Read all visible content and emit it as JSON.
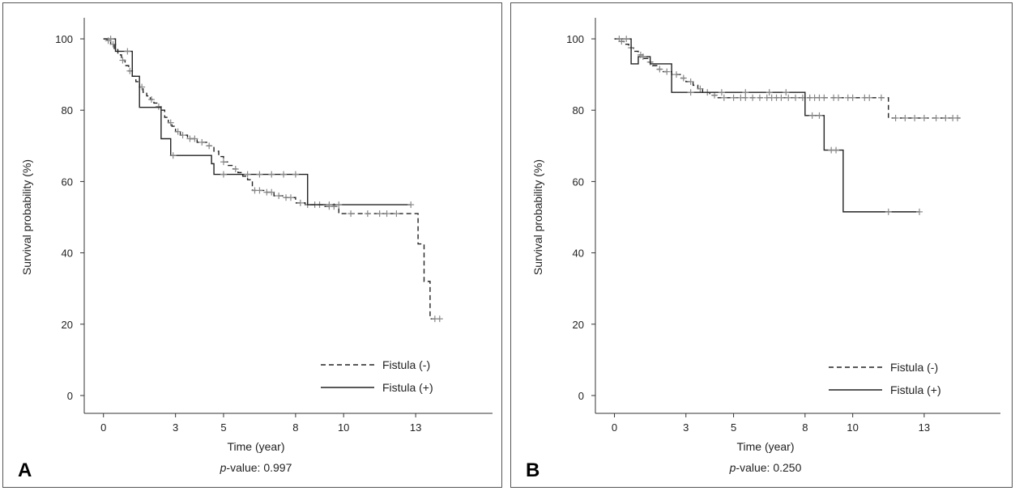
{
  "chart_data": [
    {
      "type": "line",
      "panel_label": "A",
      "xlabel": "Time (year)",
      "ylabel": "Survival probability (%)",
      "x_ticks": [
        "0",
        "3",
        "5",
        "8",
        "10",
        "13"
      ],
      "x_tick_values": [
        0,
        3,
        5,
        8,
        10,
        13
      ],
      "y_ticks": [
        "0",
        "20",
        "40",
        "60",
        "80",
        "100"
      ],
      "y_tick_values": [
        0,
        20,
        40,
        60,
        80,
        100
      ],
      "xlim": [
        -0.8,
        16.2
      ],
      "ylim": [
        -5,
        105
      ],
      "pvalue_italic": "p",
      "pvalue_text": "-value: 0.997",
      "legend_position": "bottom-right",
      "series": [
        {
          "name": "Fistula (-)",
          "dash": "dashed",
          "steps": [
            [
              0,
              100
            ],
            [
              0.15,
              99.5
            ],
            [
              0.3,
              98.5
            ],
            [
              0.45,
              97
            ],
            [
              0.6,
              95.5
            ],
            [
              0.75,
              94
            ],
            [
              0.9,
              92.5
            ],
            [
              1.05,
              91
            ],
            [
              1.2,
              89.5
            ],
            [
              1.35,
              88
            ],
            [
              1.5,
              86.5
            ],
            [
              1.65,
              85
            ],
            [
              1.8,
              84
            ],
            [
              1.95,
              83
            ],
            [
              2.1,
              82
            ],
            [
              2.25,
              81
            ],
            [
              2.4,
              80
            ],
            [
              2.55,
              78
            ],
            [
              2.7,
              76.5
            ],
            [
              2.85,
              75.5
            ],
            [
              3,
              74
            ],
            [
              3.2,
              73
            ],
            [
              3.5,
              72
            ],
            [
              3.9,
              71
            ],
            [
              4.3,
              70
            ],
            [
              4.6,
              68.5
            ],
            [
              4.8,
              67
            ],
            [
              5,
              65.5
            ],
            [
              5.2,
              64.5
            ],
            [
              5.4,
              63.5
            ],
            [
              5.6,
              62.5
            ],
            [
              5.8,
              61.5
            ],
            [
              6.0,
              60.5
            ],
            [
              6.2,
              57.5
            ],
            [
              6.7,
              57
            ],
            [
              7.1,
              56
            ],
            [
              7.5,
              55.5
            ],
            [
              8.0,
              54
            ],
            [
              8.4,
              53.5
            ],
            [
              9.2,
              53
            ],
            [
              9.8,
              51
            ],
            [
              10.2,
              51
            ],
            [
              12.9,
              51
            ],
            [
              13.1,
              42.5
            ],
            [
              13.35,
              32
            ],
            [
              13.6,
              21.5
            ],
            [
              14.0,
              21.5
            ]
          ],
          "censor": [
            0.2,
            0.4,
            0.8,
            1.1,
            1.6,
            2.0,
            2.3,
            2.8,
            3.1,
            3.3,
            3.6,
            3.8,
            4.1,
            4.4,
            5.0,
            5.5,
            6.3,
            6.5,
            6.8,
            7.0,
            7.3,
            7.6,
            7.8,
            8.2,
            8.5,
            8.8,
            9.0,
            9.4,
            9.6,
            10.3,
            11.0,
            11.5,
            11.8,
            12.2,
            13.8,
            14.0
          ]
        },
        {
          "name": "Fistula (+)",
          "dash": "solid",
          "steps": [
            [
              0,
              100
            ],
            [
              0.5,
              100
            ],
            [
              0.5,
              96.5
            ],
            [
              1.2,
              89.5
            ],
            [
              1.5,
              80.8
            ],
            [
              2.4,
              80.8
            ],
            [
              2.4,
              72
            ],
            [
              2.8,
              67.3
            ],
            [
              4.5,
              67.3
            ],
            [
              4.5,
              65
            ],
            [
              4.6,
              62
            ],
            [
              8.5,
              62
            ],
            [
              8.5,
              53.5
            ],
            [
              12.8,
              53.5
            ]
          ],
          "censor": [
            0.3,
            1.0,
            2.9,
            5.0,
            6.0,
            6.5,
            7.0,
            7.5,
            8.0,
            9.4,
            9.8,
            12.8
          ]
        }
      ]
    },
    {
      "type": "line",
      "panel_label": "B",
      "xlabel": "Time (year)",
      "ylabel": "Survival probability (%)",
      "x_ticks": [
        "0",
        "3",
        "5",
        "8",
        "10",
        "13"
      ],
      "x_tick_values": [
        0,
        3,
        5,
        8,
        10,
        13
      ],
      "y_ticks": [
        "0",
        "20",
        "40",
        "60",
        "80",
        "100"
      ],
      "y_tick_values": [
        0,
        20,
        40,
        60,
        80,
        100
      ],
      "xlim": [
        -0.8,
        16.2
      ],
      "ylim": [
        -5,
        105
      ],
      "pvalue_italic": "p",
      "pvalue_text": "-value: 0.250",
      "legend_position": "bottom-right",
      "series": [
        {
          "name": "Fistula (-)",
          "dash": "dashed",
          "steps": [
            [
              0,
              100
            ],
            [
              0.2,
              99.3
            ],
            [
              0.4,
              98.5
            ],
            [
              0.6,
              97.5
            ],
            [
              0.8,
              96.5
            ],
            [
              1.0,
              95.5
            ],
            [
              1.2,
              94.5
            ],
            [
              1.4,
              93.5
            ],
            [
              1.6,
              92.5
            ],
            [
              1.8,
              91.5
            ],
            [
              2.0,
              90.8
            ],
            [
              2.4,
              90
            ],
            [
              2.8,
              89
            ],
            [
              3.0,
              88
            ],
            [
              3.3,
              87
            ],
            [
              3.5,
              86
            ],
            [
              3.7,
              85
            ],
            [
              4.0,
              84.2
            ],
            [
              4.3,
              83.5
            ],
            [
              11.5,
              83.5
            ],
            [
              11.5,
              77.8
            ],
            [
              14.5,
              77.8
            ]
          ],
          "censor": [
            0.3,
            0.7,
            1.1,
            1.5,
            1.9,
            2.2,
            2.6,
            2.9,
            3.2,
            3.6,
            3.9,
            4.2,
            4.6,
            5.0,
            5.3,
            5.5,
            5.8,
            6.1,
            6.4,
            6.6,
            6.8,
            7.0,
            7.3,
            7.6,
            7.9,
            8.2,
            8.4,
            8.6,
            8.8,
            9.2,
            9.4,
            9.8,
            10.0,
            10.5,
            10.7,
            11.2,
            11.8,
            12.2,
            12.6,
            13.0,
            13.5,
            13.9,
            14.2,
            14.4
          ]
        },
        {
          "name": "Fistula (+)",
          "dash": "solid",
          "steps": [
            [
              0,
              100
            ],
            [
              0.7,
              100
            ],
            [
              0.7,
              93
            ],
            [
              1.0,
              95
            ],
            [
              1.5,
              93
            ],
            [
              2.4,
              93
            ],
            [
              2.4,
              85
            ],
            [
              8.0,
              85
            ],
            [
              8.0,
              78.5
            ],
            [
              8.8,
              78.5
            ],
            [
              8.8,
              68.8
            ],
            [
              9.6,
              68.8
            ],
            [
              9.6,
              51.5
            ],
            [
              12.8,
              51.5
            ]
          ],
          "censor": [
            0.2,
            0.5,
            1.2,
            3.2,
            4.5,
            5.5,
            6.5,
            7.2,
            8.3,
            8.6,
            9.1,
            9.3,
            11.5,
            12.8
          ]
        }
      ]
    }
  ]
}
